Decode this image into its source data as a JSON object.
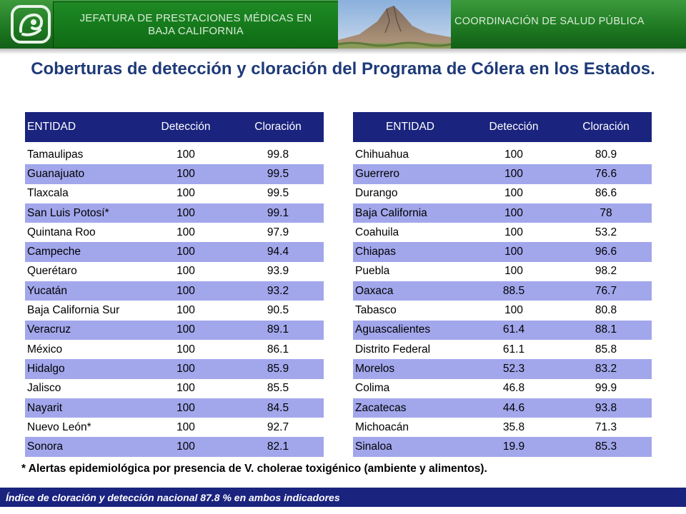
{
  "header": {
    "left_text_line1": "JEFATURA DE PRESTACIONES MÉDICAS EN",
    "left_text_line2": "BAJA CALIFORNIA",
    "right_text": "COORDINACIÓN DE SALUD PÚBLICA",
    "colors": {
      "band": "#1f7a22",
      "text": "#d8ecd8"
    }
  },
  "title": "Coberturas de detección y cloración del Programa de Cólera en los Estados.",
  "tables": {
    "columns": [
      "ENTIDAD",
      "Detección",
      "Cloración"
    ],
    "left_rows": [
      [
        "Tamaulipas",
        "100",
        "99.8"
      ],
      [
        "Guanajuato",
        "100",
        "99.5"
      ],
      [
        "Tlaxcala",
        "100",
        "99.5"
      ],
      [
        "San Luis Potosí*",
        "100",
        "99.1"
      ],
      [
        "Quintana Roo",
        "100",
        "97.9"
      ],
      [
        "Campeche",
        "100",
        "94.4"
      ],
      [
        "Querétaro",
        "100",
        "93.9"
      ],
      [
        "Yucatán",
        "100",
        "93.2"
      ],
      [
        "Baja California Sur",
        "100",
        "90.5"
      ],
      [
        "Veracruz",
        "100",
        "89.1"
      ],
      [
        "México",
        "100",
        "86.1"
      ],
      [
        "Hidalgo",
        "100",
        "85.9"
      ],
      [
        "Jalisco",
        "100",
        "85.5"
      ],
      [
        "Nayarit",
        "100",
        "84.5"
      ],
      [
        "Nuevo León*",
        "100",
        "92.7"
      ],
      [
        "Sonora",
        "100",
        "82.1"
      ]
    ],
    "right_rows": [
      [
        "Chihuahua",
        "100",
        "80.9"
      ],
      [
        "Guerrero",
        "100",
        "76.6"
      ],
      [
        "Durango",
        "100",
        "86.6"
      ],
      [
        "Baja California",
        "100",
        "78"
      ],
      [
        "Coahuila",
        "100",
        "53.2"
      ],
      [
        "Chiapas",
        "100",
        "96.6"
      ],
      [
        "Puebla",
        "100",
        "98.2"
      ],
      [
        "Oaxaca",
        "88.5",
        "76.7"
      ],
      [
        "Tabasco",
        "100",
        "80.8"
      ],
      [
        "Aguascalientes",
        "61.4",
        "88.1"
      ],
      [
        "Distrito Federal",
        "61.1",
        "85.8"
      ],
      [
        "Morelos",
        "52.3",
        "83.2"
      ],
      [
        "Colima",
        "46.8",
        "99.9"
      ],
      [
        "Zacatecas",
        "44.6",
        "93.8"
      ],
      [
        "Michoacán",
        "35.8",
        "71.3"
      ],
      [
        "Sinaloa",
        "19.9",
        "85.3"
      ]
    ],
    "colors": {
      "header_bg": "#1a237e",
      "stripe": "#a2a7ec"
    }
  },
  "footnote": "* Alertas epidemiológica por presencia de V. cholerae toxigénico (ambiente y alimentos).",
  "bottom_bar": {
    "text": "Índice de cloración y detección nacional  87.8 %  en ambos indicadores"
  }
}
